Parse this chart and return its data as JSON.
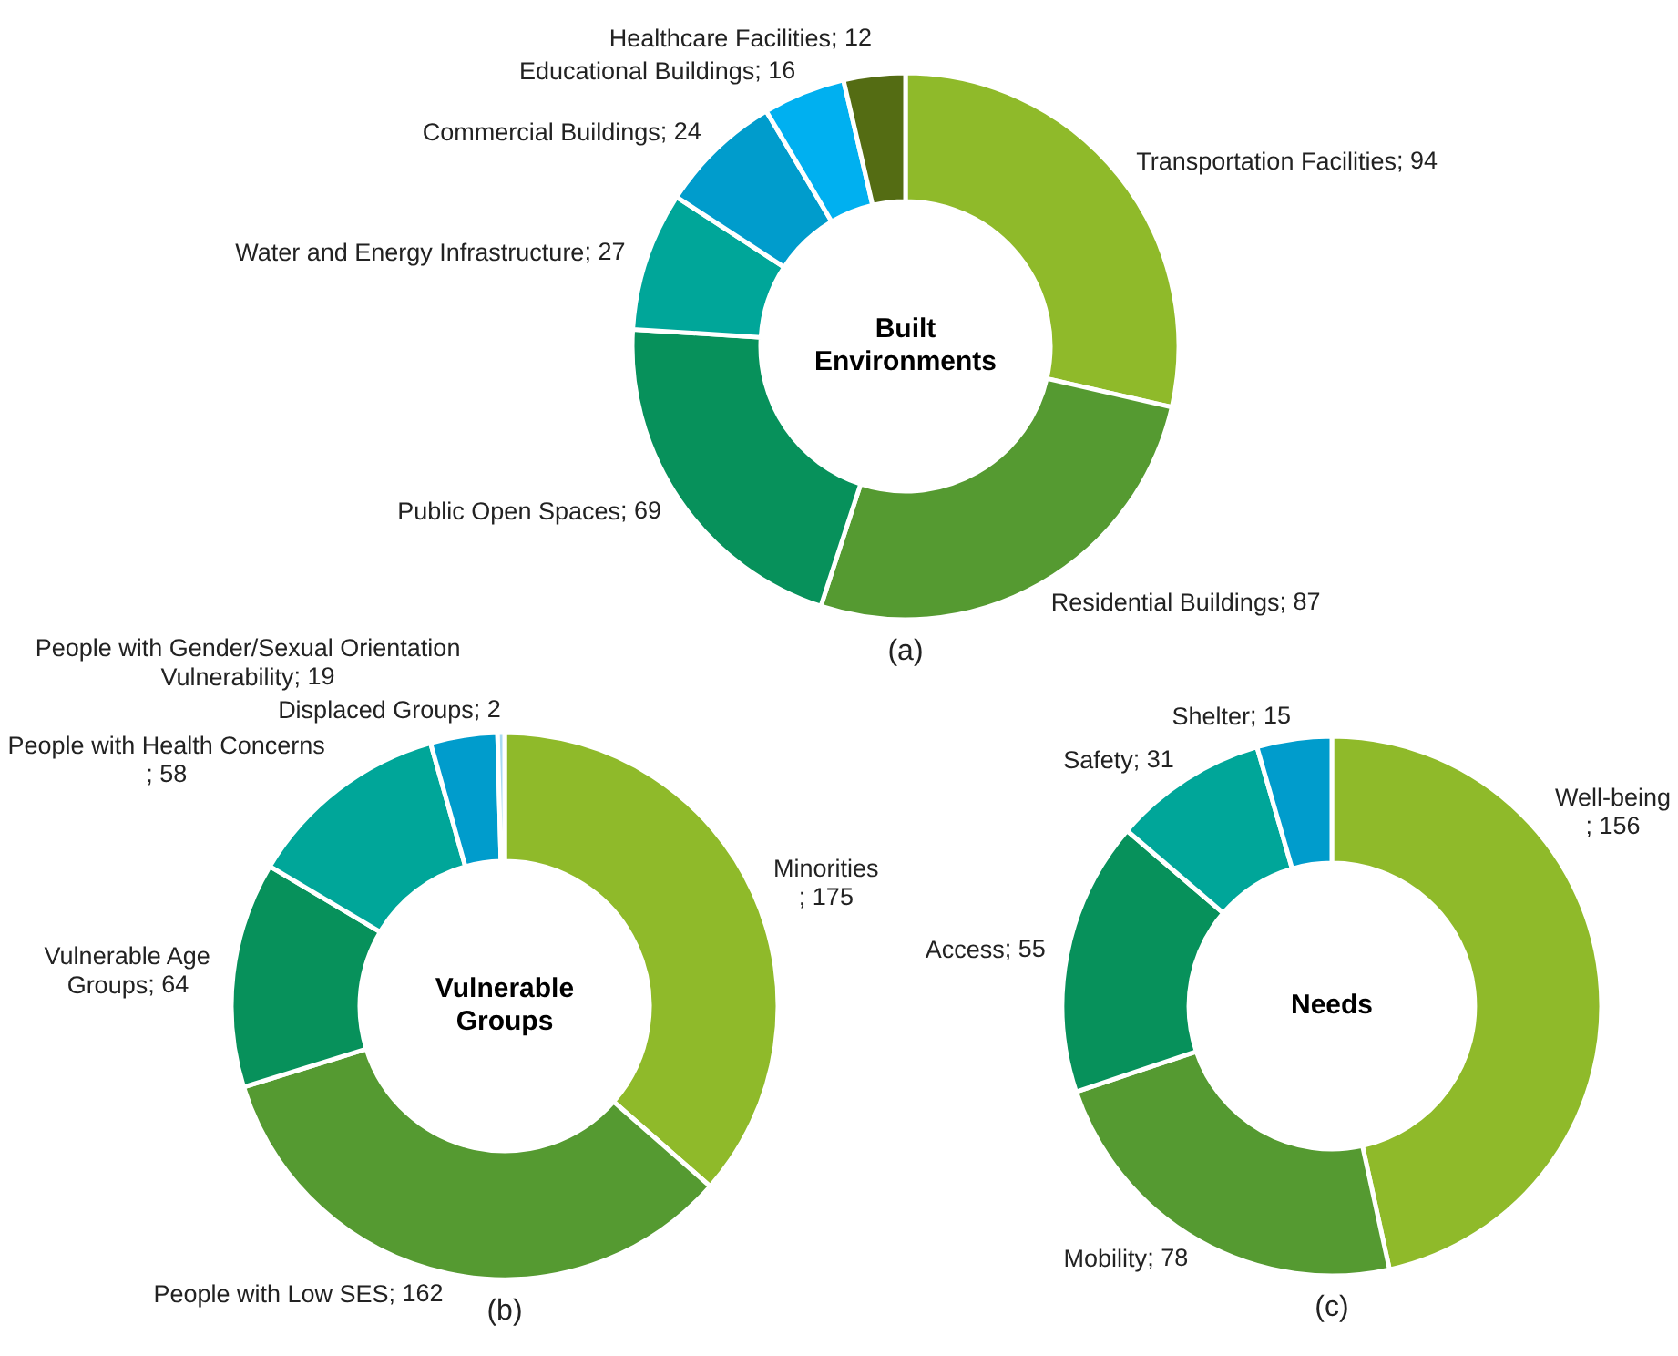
{
  "chart_data": [
    {
      "type": "donut",
      "title": "Built Environments",
      "categories": [
        "Transportation Facilities",
        "Residential Buildings",
        "Public Open Spaces",
        "Water and Energy Infrastructure",
        "Commercial Buildings",
        "Educational Buildings",
        "Healthcare Facilities"
      ],
      "values": [
        94,
        87,
        69,
        27,
        24,
        16,
        12
      ],
      "colors": [
        "#8fba2a",
        "#559a31",
        "#07915b",
        "#00a699",
        "#009ccc",
        "#00b0f0",
        "#546c13"
      ],
      "value_labels": [
        "; 94",
        "; 87",
        "; 69",
        "; 27",
        "; 24",
        "; 16",
        "; 12"
      ],
      "annotations": [
        "(a)"
      ]
    },
    {
      "type": "donut",
      "title": "Vulnerable Groups",
      "categories": [
        "Minorities",
        "People with Low SES",
        "Vulnerable Age Groups",
        "People with Health Concerns",
        "People with Gender/Sexual Orientation Vulnerability",
        "Displaced Groups"
      ],
      "values": [
        175,
        162,
        64,
        58,
        19,
        2
      ],
      "colors": [
        "#8fba2a",
        "#559a31",
        "#07915b",
        "#00a699",
        "#009ccc",
        "#a8daf2"
      ],
      "value_labels": [
        "; 175",
        "; 162",
        "; 64",
        "; 58",
        "; 19",
        "; 2"
      ],
      "annotations": [
        "(b)"
      ]
    },
    {
      "type": "donut",
      "title": "Needs",
      "categories": [
        "Well-being",
        "Mobility",
        "Access",
        "Safety",
        "Shelter"
      ],
      "values": [
        156,
        78,
        55,
        31,
        15
      ],
      "colors": [
        "#8fba2a",
        "#559a31",
        "#07915b",
        "#00a699",
        "#009ccc"
      ],
      "value_labels": [
        "; 156",
        "; 78",
        "; 55",
        "; 31",
        "; 15"
      ],
      "annotations": [
        "(c)"
      ]
    }
  ]
}
